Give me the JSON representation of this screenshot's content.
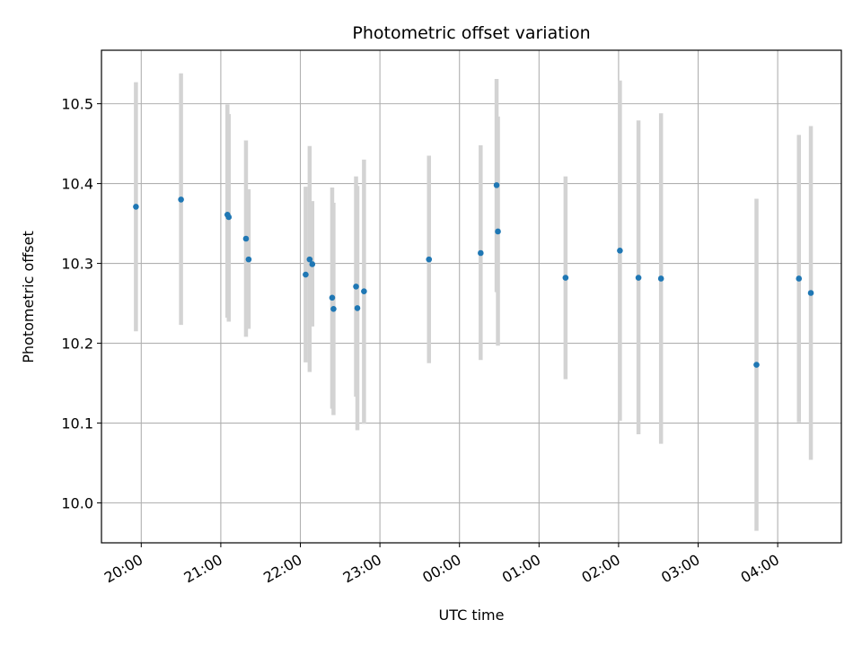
{
  "chart_data": {
    "type": "scatter",
    "title": "Photometric offset variation",
    "xlabel": "UTC time",
    "ylabel": "Photometric offset",
    "grid": true,
    "xlim": [
      "19:30",
      "04:48"
    ],
    "ylim": [
      9.95,
      10.567
    ],
    "x_ticks": [
      "20:00",
      "21:00",
      "22:00",
      "23:00",
      "00:00",
      "01:00",
      "02:00",
      "03:00",
      "04:00"
    ],
    "y_ticks": [
      "10.0",
      "10.1",
      "10.2",
      "10.3",
      "10.4",
      "10.5"
    ],
    "colors": {
      "marker": "#1f77b4",
      "errorbar": "#d3d3d3",
      "grid": "#b0b0b0"
    },
    "points": [
      {
        "x": "19:56",
        "y": 10.371,
        "ylow": 10.215,
        "yhigh": 10.527
      },
      {
        "x": "20:30",
        "y": 10.38,
        "ylow": 10.223,
        "yhigh": 10.538
      },
      {
        "x": "21:05",
        "y": 10.361,
        "ylow": 10.232,
        "yhigh": 10.499
      },
      {
        "x": "21:06",
        "y": 10.358,
        "ylow": 10.227,
        "yhigh": 10.487
      },
      {
        "x": "21:19",
        "y": 10.331,
        "ylow": 10.208,
        "yhigh": 10.454
      },
      {
        "x": "21:21",
        "y": 10.305,
        "ylow": 10.218,
        "yhigh": 10.393
      },
      {
        "x": "22:04",
        "y": 10.286,
        "ylow": 10.176,
        "yhigh": 10.396
      },
      {
        "x": "22:07",
        "y": 10.305,
        "ylow": 10.164,
        "yhigh": 10.447
      },
      {
        "x": "22:09",
        "y": 10.299,
        "ylow": 10.221,
        "yhigh": 10.378
      },
      {
        "x": "22:24",
        "y": 10.257,
        "ylow": 10.118,
        "yhigh": 10.395
      },
      {
        "x": "22:25",
        "y": 10.243,
        "ylow": 10.11,
        "yhigh": 10.376
      },
      {
        "x": "22:42",
        "y": 10.271,
        "ylow": 10.133,
        "yhigh": 10.409
      },
      {
        "x": "22:43",
        "y": 10.244,
        "ylow": 10.091,
        "yhigh": 10.397
      },
      {
        "x": "22:48",
        "y": 10.265,
        "ylow": 10.099,
        "yhigh": 10.43
      },
      {
        "x": "23:37",
        "y": 10.305,
        "ylow": 10.175,
        "yhigh": 10.435
      },
      {
        "x": "00:16",
        "y": 10.313,
        "ylow": 10.179,
        "yhigh": 10.448
      },
      {
        "x": "00:28",
        "y": 10.398,
        "ylow": 10.264,
        "yhigh": 10.531
      },
      {
        "x": "00:29",
        "y": 10.34,
        "ylow": 10.197,
        "yhigh": 10.484
      },
      {
        "x": "01:20",
        "y": 10.282,
        "ylow": 10.155,
        "yhigh": 10.409
      },
      {
        "x": "02:01",
        "y": 10.316,
        "ylow": 10.103,
        "yhigh": 10.529
      },
      {
        "x": "02:15",
        "y": 10.282,
        "ylow": 10.086,
        "yhigh": 10.479
      },
      {
        "x": "02:32",
        "y": 10.281,
        "ylow": 10.074,
        "yhigh": 10.488
      },
      {
        "x": "03:44",
        "y": 10.173,
        "ylow": 9.965,
        "yhigh": 10.381
      },
      {
        "x": "04:16",
        "y": 10.281,
        "ylow": 10.101,
        "yhigh": 10.461
      },
      {
        "x": "04:25",
        "y": 10.263,
        "ylow": 10.054,
        "yhigh": 10.472
      }
    ]
  }
}
